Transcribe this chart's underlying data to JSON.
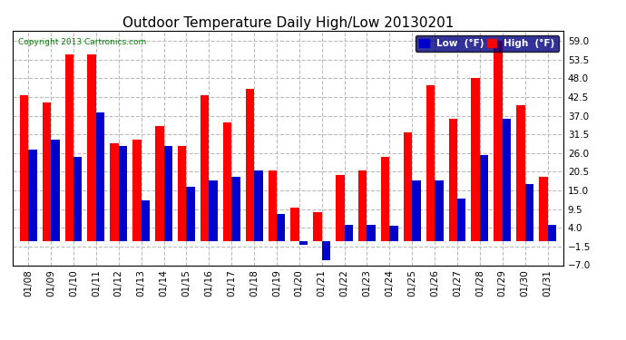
{
  "title": "Outdoor Temperature Daily High/Low 20130201",
  "copyright": "Copyright 2013 Cartronics.com",
  "legend_low": "Low  (°F)",
  "legend_high": "High  (°F)",
  "dates": [
    "01/08",
    "01/09",
    "01/10",
    "01/11",
    "01/12",
    "01/13",
    "01/14",
    "01/15",
    "01/16",
    "01/17",
    "01/18",
    "01/19",
    "01/20",
    "01/21",
    "01/22",
    "01/23",
    "01/24",
    "01/25",
    "01/26",
    "01/27",
    "01/28",
    "01/29",
    "01/30",
    "01/31"
  ],
  "highs": [
    43.0,
    41.0,
    55.0,
    55.0,
    29.0,
    30.0,
    34.0,
    28.0,
    43.0,
    35.0,
    45.0,
    21.0,
    10.0,
    8.5,
    19.5,
    21.0,
    25.0,
    32.0,
    46.0,
    36.0,
    48.0,
    59.0,
    40.0,
    19.0
  ],
  "lows": [
    27.0,
    30.0,
    25.0,
    38.0,
    28.0,
    12.0,
    28.0,
    16.0,
    18.0,
    19.0,
    21.0,
    8.0,
    -1.0,
    -5.5,
    5.0,
    5.0,
    4.5,
    18.0,
    18.0,
    12.5,
    25.5,
    36.0,
    17.0,
    5.0
  ],
  "ylim": [
    -7.0,
    62.0
  ],
  "yticks": [
    -7.0,
    -1.5,
    4.0,
    9.5,
    15.0,
    20.5,
    26.0,
    31.5,
    37.0,
    42.5,
    48.0,
    53.5,
    59.0
  ],
  "high_color": "#ff0000",
  "low_color": "#0000cc",
  "bg_color": "#ffffff",
  "grid_color": "#bbbbbb",
  "title_fontsize": 11,
  "axis_fontsize": 7.5,
  "bar_width": 0.38
}
